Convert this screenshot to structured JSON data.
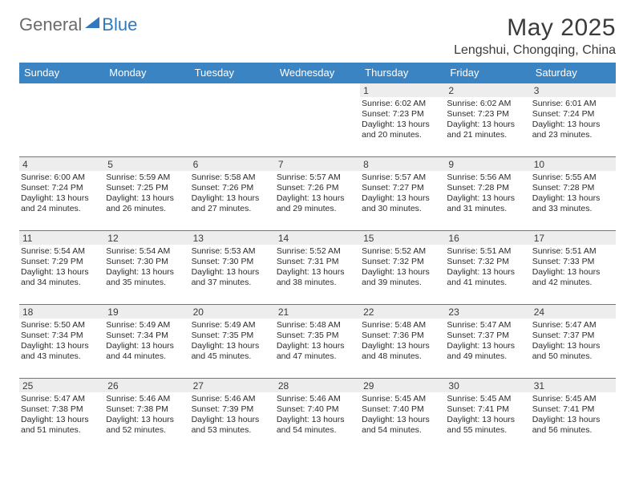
{
  "logo": {
    "general": "General",
    "blue": "Blue"
  },
  "title": "May 2025",
  "location": "Lengshui, Chongqing, China",
  "colors": {
    "header_bg": "#3b84c4",
    "header_text": "#ffffff",
    "daynum_bg": "#ededed",
    "border": "#3b84c4",
    "text": "#2b2b2b",
    "logo_general": "#6b6b6b",
    "logo_blue": "#2f79bf"
  },
  "weekdays": [
    "Sunday",
    "Monday",
    "Tuesday",
    "Wednesday",
    "Thursday",
    "Friday",
    "Saturday"
  ],
  "weeks": [
    [
      null,
      null,
      null,
      null,
      {
        "n": "1",
        "sr": "6:02 AM",
        "ss": "7:23 PM",
        "dh": "13",
        "dm": "20"
      },
      {
        "n": "2",
        "sr": "6:02 AM",
        "ss": "7:23 PM",
        "dh": "13",
        "dm": "21"
      },
      {
        "n": "3",
        "sr": "6:01 AM",
        "ss": "7:24 PM",
        "dh": "13",
        "dm": "23"
      }
    ],
    [
      {
        "n": "4",
        "sr": "6:00 AM",
        "ss": "7:24 PM",
        "dh": "13",
        "dm": "24"
      },
      {
        "n": "5",
        "sr": "5:59 AM",
        "ss": "7:25 PM",
        "dh": "13",
        "dm": "26"
      },
      {
        "n": "6",
        "sr": "5:58 AM",
        "ss": "7:26 PM",
        "dh": "13",
        "dm": "27"
      },
      {
        "n": "7",
        "sr": "5:57 AM",
        "ss": "7:26 PM",
        "dh": "13",
        "dm": "29"
      },
      {
        "n": "8",
        "sr": "5:57 AM",
        "ss": "7:27 PM",
        "dh": "13",
        "dm": "30"
      },
      {
        "n": "9",
        "sr": "5:56 AM",
        "ss": "7:28 PM",
        "dh": "13",
        "dm": "31"
      },
      {
        "n": "10",
        "sr": "5:55 AM",
        "ss": "7:28 PM",
        "dh": "13",
        "dm": "33"
      }
    ],
    [
      {
        "n": "11",
        "sr": "5:54 AM",
        "ss": "7:29 PM",
        "dh": "13",
        "dm": "34"
      },
      {
        "n": "12",
        "sr": "5:54 AM",
        "ss": "7:30 PM",
        "dh": "13",
        "dm": "35"
      },
      {
        "n": "13",
        "sr": "5:53 AM",
        "ss": "7:30 PM",
        "dh": "13",
        "dm": "37"
      },
      {
        "n": "14",
        "sr": "5:52 AM",
        "ss": "7:31 PM",
        "dh": "13",
        "dm": "38"
      },
      {
        "n": "15",
        "sr": "5:52 AM",
        "ss": "7:32 PM",
        "dh": "13",
        "dm": "39"
      },
      {
        "n": "16",
        "sr": "5:51 AM",
        "ss": "7:32 PM",
        "dh": "13",
        "dm": "41"
      },
      {
        "n": "17",
        "sr": "5:51 AM",
        "ss": "7:33 PM",
        "dh": "13",
        "dm": "42"
      }
    ],
    [
      {
        "n": "18",
        "sr": "5:50 AM",
        "ss": "7:34 PM",
        "dh": "13",
        "dm": "43"
      },
      {
        "n": "19",
        "sr": "5:49 AM",
        "ss": "7:34 PM",
        "dh": "13",
        "dm": "44"
      },
      {
        "n": "20",
        "sr": "5:49 AM",
        "ss": "7:35 PM",
        "dh": "13",
        "dm": "45"
      },
      {
        "n": "21",
        "sr": "5:48 AM",
        "ss": "7:35 PM",
        "dh": "13",
        "dm": "47"
      },
      {
        "n": "22",
        "sr": "5:48 AM",
        "ss": "7:36 PM",
        "dh": "13",
        "dm": "48"
      },
      {
        "n": "23",
        "sr": "5:47 AM",
        "ss": "7:37 PM",
        "dh": "13",
        "dm": "49"
      },
      {
        "n": "24",
        "sr": "5:47 AM",
        "ss": "7:37 PM",
        "dh": "13",
        "dm": "50"
      }
    ],
    [
      {
        "n": "25",
        "sr": "5:47 AM",
        "ss": "7:38 PM",
        "dh": "13",
        "dm": "51"
      },
      {
        "n": "26",
        "sr": "5:46 AM",
        "ss": "7:38 PM",
        "dh": "13",
        "dm": "52"
      },
      {
        "n": "27",
        "sr": "5:46 AM",
        "ss": "7:39 PM",
        "dh": "13",
        "dm": "53"
      },
      {
        "n": "28",
        "sr": "5:46 AM",
        "ss": "7:40 PM",
        "dh": "13",
        "dm": "54"
      },
      {
        "n": "29",
        "sr": "5:45 AM",
        "ss": "7:40 PM",
        "dh": "13",
        "dm": "54"
      },
      {
        "n": "30",
        "sr": "5:45 AM",
        "ss": "7:41 PM",
        "dh": "13",
        "dm": "55"
      },
      {
        "n": "31",
        "sr": "5:45 AM",
        "ss": "7:41 PM",
        "dh": "13",
        "dm": "56"
      }
    ]
  ],
  "labels": {
    "sunrise": "Sunrise:",
    "sunset": "Sunset:",
    "daylight": "Daylight:",
    "hours": "hours",
    "and": "and",
    "minutes": "minutes."
  }
}
